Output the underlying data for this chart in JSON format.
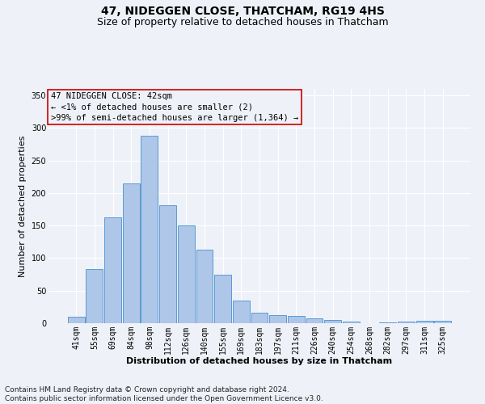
{
  "title": "47, NIDEGGEN CLOSE, THATCHAM, RG19 4HS",
  "subtitle": "Size of property relative to detached houses in Thatcham",
  "xlabel": "Distribution of detached houses by size in Thatcham",
  "ylabel": "Number of detached properties",
  "categories": [
    "41sqm",
    "55sqm",
    "69sqm",
    "84sqm",
    "98sqm",
    "112sqm",
    "126sqm",
    "140sqm",
    "155sqm",
    "169sqm",
    "183sqm",
    "197sqm",
    "211sqm",
    "226sqm",
    "240sqm",
    "254sqm",
    "268sqm",
    "282sqm",
    "297sqm",
    "311sqm",
    "325sqm"
  ],
  "values": [
    10,
    83,
    163,
    215,
    288,
    181,
    150,
    113,
    74,
    35,
    16,
    12,
    11,
    7,
    5,
    2,
    0,
    1,
    3,
    4,
    4
  ],
  "bar_color": "#aec6e8",
  "bar_edge_color": "#5b9bd5",
  "annotation_line1": "47 NIDEGGEN CLOSE: 42sqm",
  "annotation_line2": "← <1% of detached houses are smaller (2)",
  "annotation_line3": ">99% of semi-detached houses are larger (1,364) →",
  "annotation_box_color": "#cc0000",
  "footer_text": "Contains HM Land Registry data © Crown copyright and database right 2024.\nContains public sector information licensed under the Open Government Licence v3.0.",
  "ylim": [
    0,
    360
  ],
  "yticks": [
    0,
    50,
    100,
    150,
    200,
    250,
    300,
    350
  ],
  "background_color": "#eef2f8",
  "grid_color": "#ffffff",
  "title_fontsize": 10,
  "subtitle_fontsize": 9,
  "axis_label_fontsize": 8,
  "tick_fontsize": 7,
  "annotation_fontsize": 7.5,
  "footer_fontsize": 6.5
}
